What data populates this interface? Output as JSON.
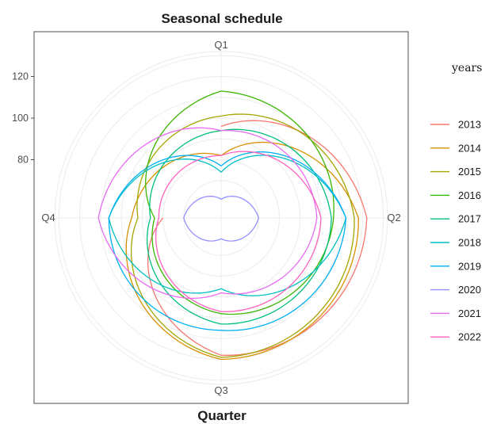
{
  "chart_data": {
    "type": "line",
    "coordinate_system": "polar",
    "title": "Seasonal schedule",
    "xlabel": "Quarter",
    "ylabel": "",
    "categories": [
      "Q1",
      "Q2",
      "Q3",
      "Q4"
    ],
    "radial_ticks": [
      "80",
      "100",
      "120"
    ],
    "radial_tick_values": [
      80,
      100,
      120
    ],
    "rlim": [
      52,
      132
    ],
    "grid": true,
    "legend_title": "years",
    "legend_position": "right",
    "series": [
      {
        "name": "2013",
        "color": "#F8766D",
        "values": [
          96,
          122,
          118,
          80
        ],
        "closed": false
      },
      {
        "name": "2014",
        "color": "#D89000",
        "values": [
          82,
          118,
          120,
          95
        ],
        "closed": true
      },
      {
        "name": "2015",
        "color": "#A3A500",
        "values": [
          101,
          116,
          119,
          92
        ],
        "closed": true
      },
      {
        "name": "2016",
        "color": "#39B600",
        "values": [
          113,
          106,
          98,
          84
        ],
        "closed": true
      },
      {
        "name": "2017",
        "color": "#00BF7D",
        "values": [
          94,
          105,
          103,
          86
        ],
        "closed": true
      },
      {
        "name": "2018",
        "color": "#00BFC4",
        "values": [
          74,
          112,
          86,
          106
        ],
        "closed": true
      },
      {
        "name": "2019",
        "color": "#00B0F6",
        "values": [
          77,
          112,
          106,
          106
        ],
        "closed": true
      },
      {
        "name": "2020",
        "color": "#9590FF",
        "values": [
          61,
          70,
          62,
          70
        ],
        "closed": true
      },
      {
        "name": "2021",
        "color": "#E76BF3",
        "values": [
          94,
          98,
          88,
          111
        ],
        "closed": true
      },
      {
        "name": "2022",
        "color": "#FF62BC",
        "values": [
          82,
          100,
          97,
          82
        ],
        "closed": true
      }
    ]
  }
}
